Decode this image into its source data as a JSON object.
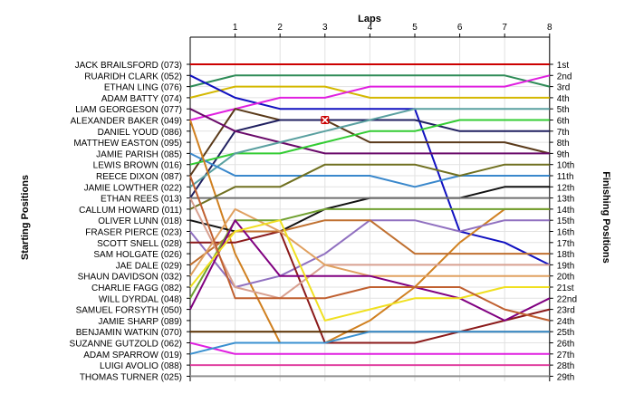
{
  "chart_data": {
    "type": "line",
    "title": "",
    "xlabel": "Laps",
    "ylabel_left": "Starting Positions",
    "ylabel_right": "Finishing Positions",
    "laps": [
      1,
      2,
      3,
      4,
      5,
      6,
      7,
      8
    ],
    "drivers": [
      "JACK BRAILSFORD (073)",
      "RUARIDH CLARK (052)",
      "ETHAN LING (076)",
      "ADAM BATTY (074)",
      "LIAM GEORGESON (077)",
      "ALEXANDER BAKER (049)",
      "DANIEL YOUD (086)",
      "MATTHEW EASTON (095)",
      "JAMIE PARISH (085)",
      "LEWIS BROWN (016)",
      "REECE DIXON (087)",
      "JAMIE LOWTHER (022)",
      "ETHAN REES (013)",
      "CALLUM HOWARD (011)",
      "OLIVER LUNN (018)",
      "FRASER PIERCE (023)",
      "SCOTT SNELL (028)",
      "SAM HOLGATE (026)",
      "JAE DALE (029)",
      "SHAUN DAVIDSON (032)",
      "CHARLIE FAGG (082)",
      "WILL DYRDAL (048)",
      "SAMUEL FORSYTH (050)",
      "JAMIE SHARP (089)",
      "BENJAMIN WATKIN (070)",
      "SUZANNE GUTZOLD (062)",
      "ADAM SPARROW (019)",
      "LUIGI AVOLIO (088)",
      "THOMAS TURNER (025)"
    ],
    "finishing_labels": [
      "1st",
      "2nd",
      "3rd",
      "4th",
      "5th",
      "6th",
      "7th",
      "8th",
      "9th",
      "10th",
      "11th",
      "12th",
      "13th",
      "14th",
      "15th",
      "16th",
      "17th",
      "18th",
      "19th",
      "20th",
      "21st",
      "22nd",
      "23rd",
      "24th",
      "25th",
      "26th",
      "27th",
      "28th",
      "29th"
    ],
    "series": [
      {
        "color": "#cc0000",
        "positions": [
          1,
          1,
          1,
          1,
          1,
          1,
          1,
          1,
          1
        ]
      },
      {
        "color": "#2e8b57",
        "positions": [
          3,
          2,
          2,
          2,
          2,
          2,
          2,
          2,
          3
        ]
      },
      {
        "color": "#d4b800",
        "positions": [
          4,
          3,
          3,
          3,
          4,
          4,
          4,
          4,
          4
        ]
      },
      {
        "color": "#1010c0",
        "positions": [
          2,
          4,
          5,
          5,
          5,
          5,
          16,
          17,
          19
        ]
      },
      {
        "color": "#e020e0",
        "positions": [
          6,
          5,
          4,
          4,
          3,
          3,
          3,
          3,
          2
        ]
      },
      {
        "color": "#5a3a1a",
        "positions": [
          11,
          5,
          6,
          6,
          8,
          8,
          8,
          8,
          9
        ]
      },
      {
        "color": "#202060",
        "positions": [
          13,
          7,
          6,
          6,
          6,
          6,
          7,
          7,
          7
        ]
      },
      {
        "color": "#6a0a6a",
        "positions": [
          5,
          7,
          8,
          9,
          9,
          9,
          9,
          9,
          9
        ]
      },
      {
        "color": "#33cc33",
        "positions": [
          10,
          9,
          9,
          8,
          7,
          7,
          6,
          6,
          6
        ]
      },
      {
        "color": "#5aa0a0",
        "positions": [
          12,
          9,
          8,
          7,
          6,
          5,
          5,
          5,
          5
        ]
      },
      {
        "color": "#3a88cc",
        "positions": [
          9,
          11,
          11,
          11,
          11,
          12,
          11,
          11,
          11
        ]
      },
      {
        "color": "#d08020",
        "positions": [
          6,
          18,
          26,
          26,
          24,
          21,
          17,
          14,
          14
        ]
      },
      {
        "color": "#707020",
        "positions": [
          14,
          12,
          12,
          10,
          10,
          10,
          11,
          10,
          10
        ]
      },
      {
        "color": "#111111",
        "positions": [
          15,
          16,
          16,
          14,
          13,
          13,
          13,
          12,
          12
        ]
      },
      {
        "color": "#9070c0",
        "positions": [
          16,
          21,
          20,
          18,
          15,
          15,
          16,
          15,
          15
        ]
      },
      {
        "color": "#8b1a1a",
        "positions": [
          17,
          17,
          16,
          26,
          26,
          26,
          25,
          24,
          23
        ]
      },
      {
        "color": "#707070",
        "positions": [
          13,
          13,
          13,
          13,
          13,
          13,
          13,
          13,
          13
        ]
      },
      {
        "color": "#c07030",
        "positions": [
          19,
          16,
          16,
          15,
          15,
          18,
          18,
          18,
          18
        ]
      },
      {
        "color": "#d8a090",
        "positions": [
          13,
          21,
          22,
          19,
          19,
          19,
          19,
          19,
          19
        ]
      },
      {
        "color": "#e0a060",
        "positions": [
          20,
          14,
          16,
          19,
          20,
          20,
          20,
          20,
          20
        ]
      },
      {
        "color": "#70a030",
        "positions": [
          22,
          15,
          15,
          14,
          14,
          14,
          14,
          14,
          14
        ]
      },
      {
        "color": "#800080",
        "positions": [
          23,
          15,
          20,
          20,
          20,
          21,
          22,
          24,
          22
        ]
      },
      {
        "color": "#f0e020",
        "positions": [
          21,
          16,
          15,
          24,
          23,
          22,
          22,
          21,
          21
        ]
      },
      {
        "color": "#c06030",
        "positions": [
          11,
          22,
          22,
          22,
          21,
          21,
          21,
          23,
          24
        ]
      },
      {
        "color": "#5a3000",
        "positions": [
          25,
          25,
          25,
          25,
          25,
          25,
          25,
          25,
          25
        ]
      },
      {
        "color": "#e020e0",
        "positions": [
          26,
          27,
          27,
          27,
          27,
          27,
          27,
          27,
          27
        ]
      },
      {
        "color": "#3a90d0",
        "positions": [
          27,
          26,
          26,
          26,
          25,
          25,
          25,
          25,
          25
        ]
      },
      {
        "color": "#e040a0",
        "positions": [
          28,
          28,
          28,
          28,
          28,
          28,
          28,
          28,
          28
        ]
      },
      {
        "color": "#909090",
        "positions": [
          29,
          29,
          29,
          29,
          29,
          29,
          29,
          29,
          29
        ]
      }
    ],
    "retired_marker": {
      "lap": 3,
      "position": 6,
      "color": "#cc0000"
    },
    "grid": true
  }
}
